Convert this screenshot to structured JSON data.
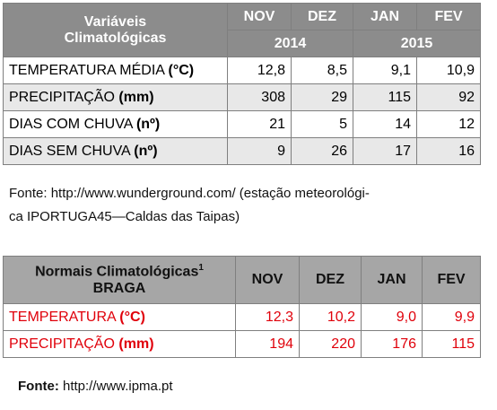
{
  "table1": {
    "header": {
      "title": [
        "Variáveis",
        "Climatológicas"
      ],
      "months": [
        "NOV",
        "DEZ",
        "JAN",
        "FEV"
      ],
      "years": [
        "2014",
        "2015"
      ]
    },
    "rows": [
      {
        "label": "TEMPERATURA MÉDIA",
        "unit": "(°C)",
        "values": [
          "12,8",
          "8,5",
          "9,1",
          "10,9"
        ]
      },
      {
        "label": "PRECIPITAÇÃO",
        "unit": "(mm)",
        "values": [
          "308",
          "29",
          "115",
          "92"
        ]
      },
      {
        "label": "DIAS COM CHUVA",
        "unit": "(nº)",
        "values": [
          "21",
          "5",
          "14",
          "12"
        ]
      },
      {
        "label": "DIAS SEM CHUVA",
        "unit": "(nº)",
        "values": [
          "9",
          "26",
          "17",
          "16"
        ]
      }
    ]
  },
  "source1": {
    "label": "Fonte:",
    "lines": [
      " http://www.wunderground.com/ (estação meteorológi-",
      "ca IPORTUGA45—Caldas das Taipas)"
    ]
  },
  "table2": {
    "header": {
      "title": "Normais Climatológicas",
      "footnote_mark": "1",
      "subtitle": "BRAGA",
      "months": [
        "NOV",
        "DEZ",
        "JAN",
        "FEV"
      ]
    },
    "rows": [
      {
        "label": "TEMPERATURA",
        "unit": "(°C)",
        "values": [
          "12,3",
          "10,2",
          "9,0",
          "9,9"
        ]
      },
      {
        "label": "PRECIPITAÇÃO",
        "unit": "(mm)",
        "values": [
          "194",
          "220",
          "176",
          "115"
        ]
      }
    ]
  },
  "source2": {
    "label": "Fonte:",
    "text": " http://www.ipma.pt"
  }
}
